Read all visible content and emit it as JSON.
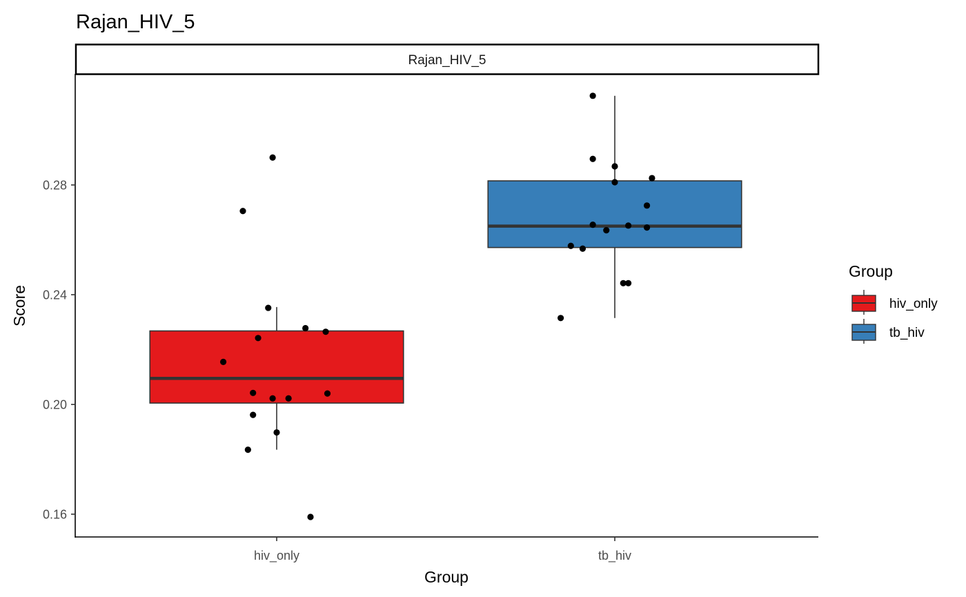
{
  "chart_data": {
    "type": "box",
    "title": "Rajan_HIV_5",
    "facet_label": "Rajan_HIV_5",
    "xlabel": "Group",
    "ylabel": "Score",
    "categories": [
      "hiv_only",
      "tb_hiv"
    ],
    "ylim": [
      0.152,
      0.321
    ],
    "yticks": [
      0.16,
      0.2,
      0.24,
      0.28
    ],
    "ytick_labels": [
      "0.16",
      "0.20",
      "0.24",
      "0.28"
    ],
    "grid": false,
    "legend": {
      "title": "Group",
      "position": "right",
      "entries": [
        {
          "label": "hiv_only",
          "color": "#E41A1C"
        },
        {
          "label": "tb_hiv",
          "color": "#377EB8"
        }
      ]
    },
    "boxes": [
      {
        "category": "hiv_only",
        "color": "#E41A1C",
        "whisker_low": 0.1835,
        "q1": 0.2005,
        "median": 0.2095,
        "q3": 0.2268,
        "whisker_high": 0.2355
      },
      {
        "category": "tb_hiv",
        "color": "#377EB8",
        "whisker_low": 0.2315,
        "q1": 0.2572,
        "median": 0.265,
        "q3": 0.2815,
        "whisker_high": 0.3125
      }
    ],
    "points": [
      {
        "category": "hiv_only",
        "y": 0.29,
        "jitter": -0.012
      },
      {
        "category": "hiv_only",
        "y": 0.2705,
        "jitter": -0.1
      },
      {
        "category": "hiv_only",
        "y": 0.2352,
        "jitter": -0.025
      },
      {
        "category": "hiv_only",
        "y": 0.2278,
        "jitter": 0.085
      },
      {
        "category": "hiv_only",
        "y": 0.2265,
        "jitter": 0.145
      },
      {
        "category": "hiv_only",
        "y": 0.2242,
        "jitter": -0.055
      },
      {
        "category": "hiv_only",
        "y": 0.2155,
        "jitter": -0.158
      },
      {
        "category": "hiv_only",
        "y": 0.2042,
        "jitter": -0.07
      },
      {
        "category": "hiv_only",
        "y": 0.204,
        "jitter": 0.15
      },
      {
        "category": "hiv_only",
        "y": 0.2022,
        "jitter": -0.012
      },
      {
        "category": "hiv_only",
        "y": 0.2022,
        "jitter": 0.035
      },
      {
        "category": "hiv_only",
        "y": 0.1962,
        "jitter": -0.07
      },
      {
        "category": "hiv_only",
        "y": 0.1898,
        "jitter": 0.0
      },
      {
        "category": "hiv_only",
        "y": 0.1835,
        "jitter": -0.085
      },
      {
        "category": "hiv_only",
        "y": 0.159,
        "jitter": 0.1
      },
      {
        "category": "tb_hiv",
        "y": 0.3125,
        "jitter": -0.065
      },
      {
        "category": "tb_hiv",
        "y": 0.2895,
        "jitter": -0.065
      },
      {
        "category": "tb_hiv",
        "y": 0.2868,
        "jitter": 0.0
      },
      {
        "category": "tb_hiv",
        "y": 0.2825,
        "jitter": 0.11
      },
      {
        "category": "tb_hiv",
        "y": 0.281,
        "jitter": 0.0
      },
      {
        "category": "tb_hiv",
        "y": 0.2725,
        "jitter": 0.095
      },
      {
        "category": "tb_hiv",
        "y": 0.2655,
        "jitter": -0.065
      },
      {
        "category": "tb_hiv",
        "y": 0.2652,
        "jitter": 0.04
      },
      {
        "category": "tb_hiv",
        "y": 0.2645,
        "jitter": 0.095
      },
      {
        "category": "tb_hiv",
        "y": 0.2635,
        "jitter": -0.025
      },
      {
        "category": "tb_hiv",
        "y": 0.2578,
        "jitter": -0.13
      },
      {
        "category": "tb_hiv",
        "y": 0.2568,
        "jitter": -0.095
      },
      {
        "category": "tb_hiv",
        "y": 0.2442,
        "jitter": 0.025
      },
      {
        "category": "tb_hiv",
        "y": 0.2442,
        "jitter": 0.04
      },
      {
        "category": "tb_hiv",
        "y": 0.2315,
        "jitter": -0.16
      }
    ]
  }
}
